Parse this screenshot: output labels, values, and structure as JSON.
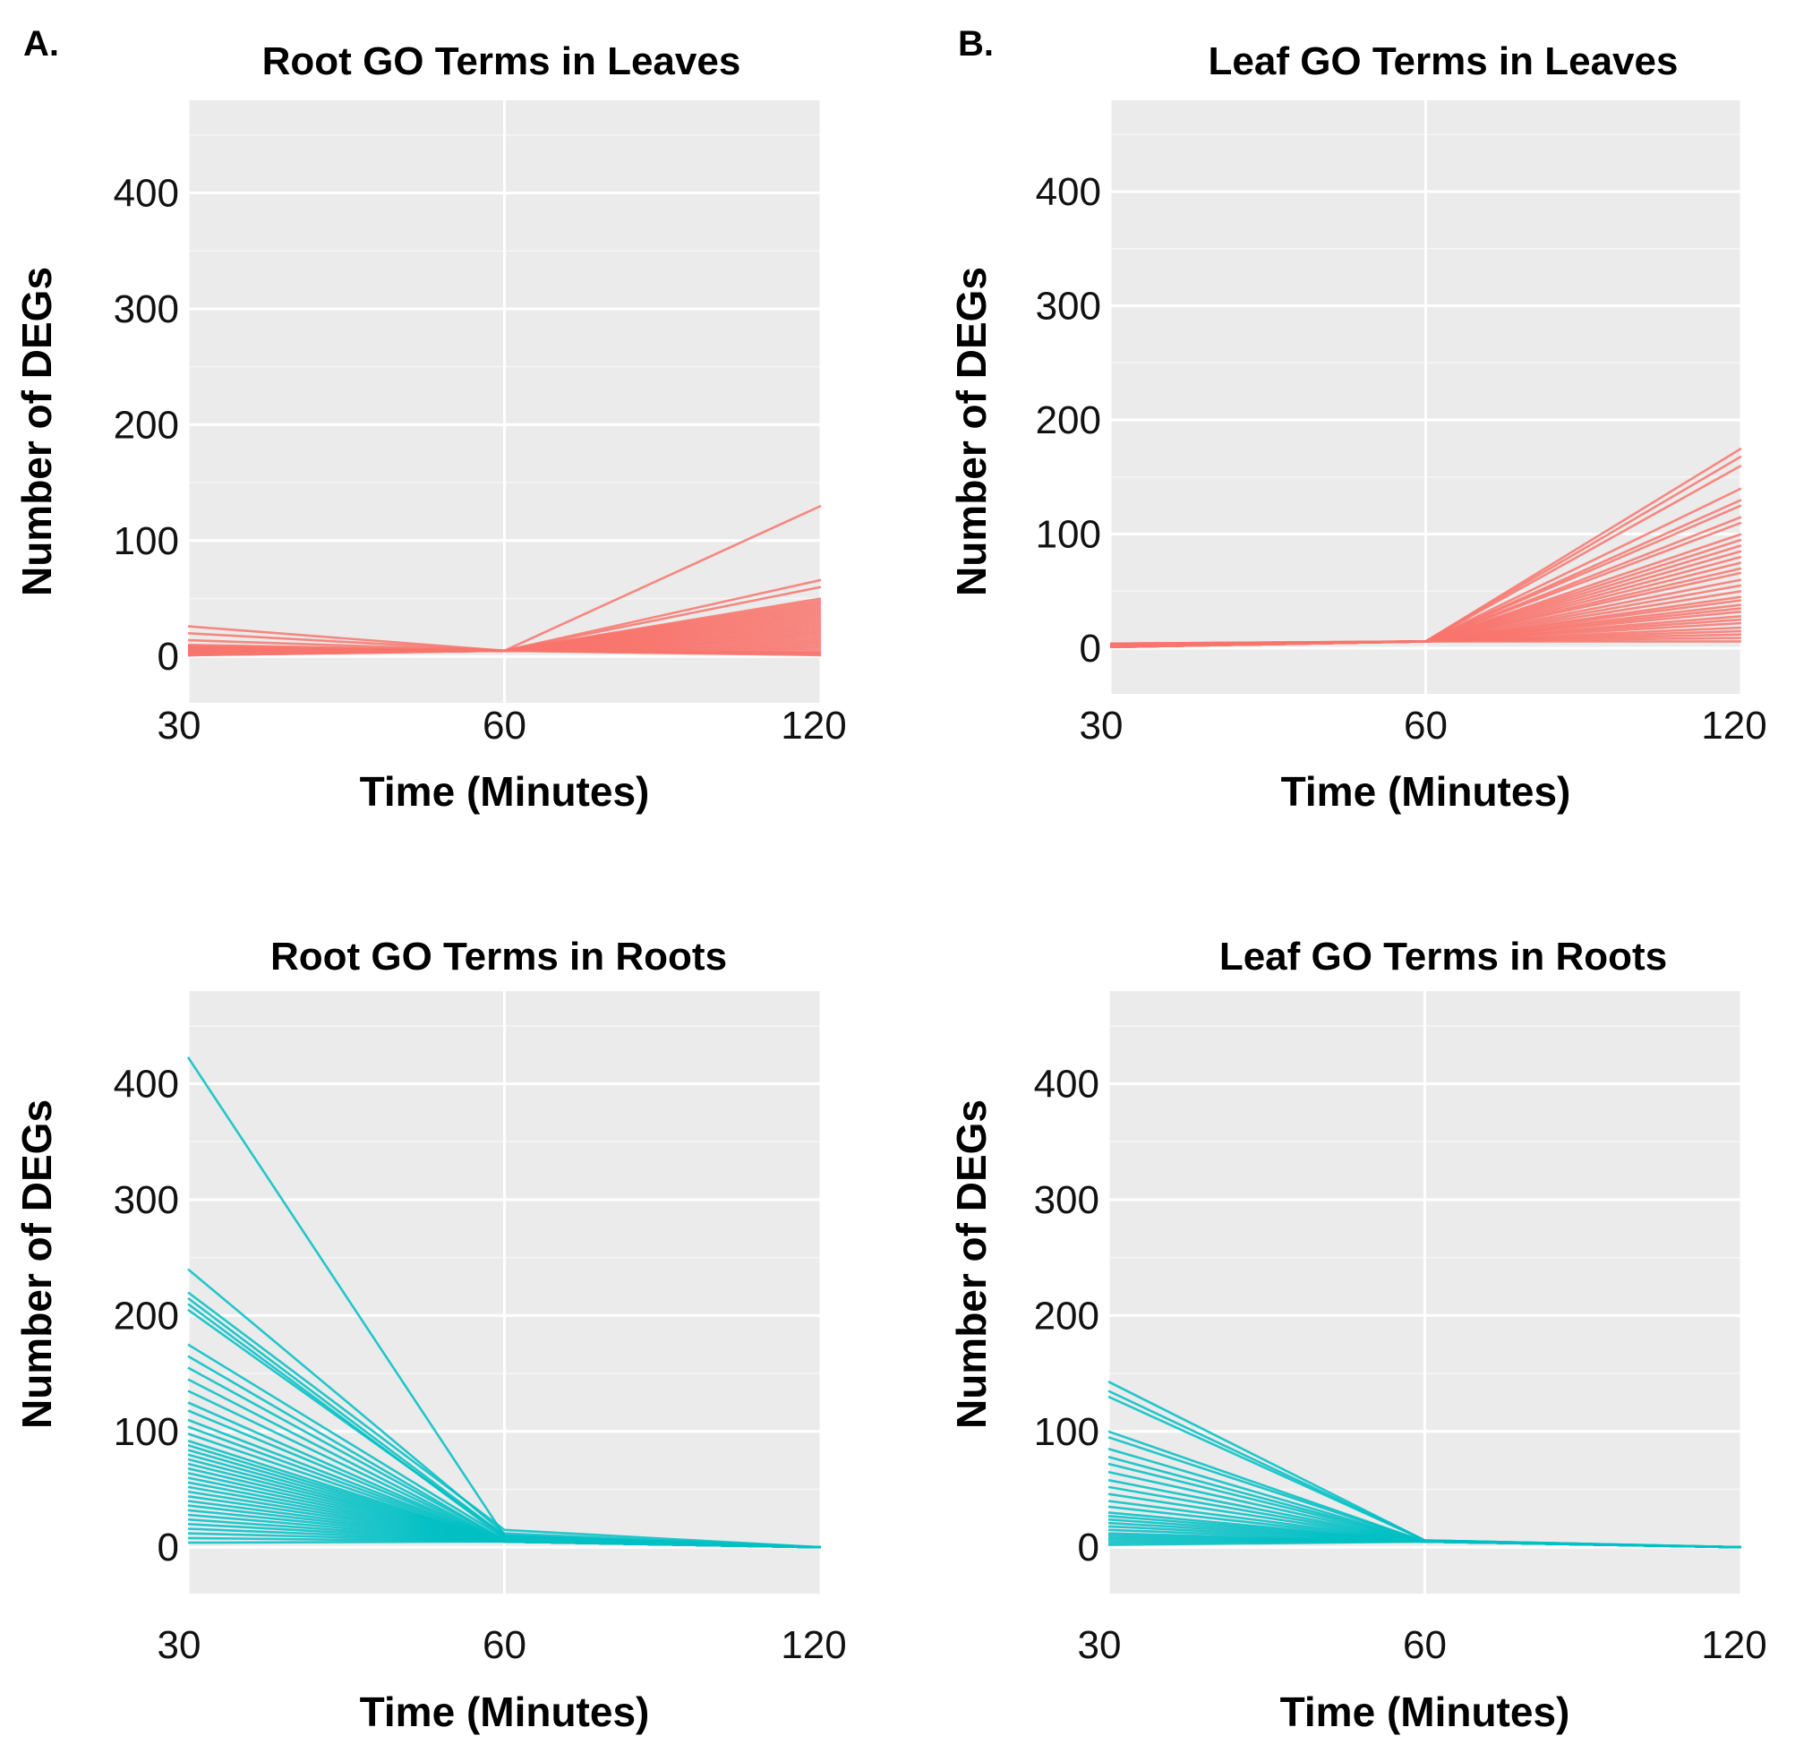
{
  "panel_letters": [
    "A.",
    "B."
  ],
  "chart_data": [
    {
      "type": "line",
      "title": "Root GO Terms in Leaves",
      "xlabel": "Time (Minutes)",
      "ylabel": "Number of DEGs",
      "x": [
        "30",
        "60",
        "120"
      ],
      "ylim": [
        -40,
        480
      ],
      "yticks": [
        "0",
        "100",
        "200",
        "300",
        "400"
      ],
      "color": "#f8766d",
      "series": [
        {
          "values": [
            26,
            5,
            130
          ]
        },
        {
          "values": [
            20,
            5,
            66
          ]
        },
        {
          "values": [
            14,
            5,
            60
          ]
        },
        {
          "values": [
            10,
            5,
            50
          ]
        },
        {
          "values": [
            9,
            5,
            48
          ]
        },
        {
          "values": [
            8,
            5,
            46
          ]
        },
        {
          "values": [
            8,
            5,
            44
          ]
        },
        {
          "values": [
            7,
            5,
            42
          ]
        },
        {
          "values": [
            7,
            5,
            40
          ]
        },
        {
          "values": [
            6,
            5,
            38
          ]
        },
        {
          "values": [
            6,
            5,
            36
          ]
        },
        {
          "values": [
            6,
            5,
            34
          ]
        },
        {
          "values": [
            5,
            5,
            32
          ]
        },
        {
          "values": [
            5,
            5,
            30
          ]
        },
        {
          "values": [
            5,
            5,
            28
          ]
        },
        {
          "values": [
            5,
            5,
            26
          ]
        },
        {
          "values": [
            4,
            5,
            24
          ]
        },
        {
          "values": [
            4,
            5,
            22
          ]
        },
        {
          "values": [
            4,
            5,
            20
          ]
        },
        {
          "values": [
            4,
            5,
            18
          ]
        },
        {
          "values": [
            4,
            5,
            16
          ]
        },
        {
          "values": [
            3,
            5,
            14
          ]
        },
        {
          "values": [
            3,
            5,
            12
          ]
        },
        {
          "values": [
            3,
            5,
            10
          ]
        },
        {
          "values": [
            3,
            5,
            8
          ]
        },
        {
          "values": [
            2,
            5,
            6
          ]
        },
        {
          "values": [
            2,
            5,
            4
          ]
        },
        {
          "values": [
            2,
            5,
            3
          ]
        },
        {
          "values": [
            1,
            5,
            2
          ]
        },
        {
          "values": [
            1,
            5,
            1
          ]
        }
      ]
    },
    {
      "type": "line",
      "title": "Leaf GO Terms in Leaves",
      "xlabel": "Time (Minutes)",
      "ylabel": "Number of DEGs",
      "x": [
        "30",
        "60",
        "120"
      ],
      "ylim": [
        -40,
        480
      ],
      "yticks": [
        "0",
        "100",
        "200",
        "300",
        "400"
      ],
      "color": "#f8766d",
      "series": [
        {
          "values": [
            4,
            6,
            175
          ]
        },
        {
          "values": [
            4,
            6,
            168
          ]
        },
        {
          "values": [
            4,
            6,
            160
          ]
        },
        {
          "values": [
            3,
            6,
            140
          ]
        },
        {
          "values": [
            3,
            6,
            130
          ]
        },
        {
          "values": [
            3,
            6,
            125
          ]
        },
        {
          "values": [
            3,
            6,
            115
          ]
        },
        {
          "values": [
            3,
            6,
            110
          ]
        },
        {
          "values": [
            3,
            6,
            100
          ]
        },
        {
          "values": [
            3,
            6,
            95
          ]
        },
        {
          "values": [
            3,
            6,
            90
          ]
        },
        {
          "values": [
            2,
            6,
            85
          ]
        },
        {
          "values": [
            2,
            6,
            80
          ]
        },
        {
          "values": [
            2,
            6,
            75
          ]
        },
        {
          "values": [
            2,
            6,
            70
          ]
        },
        {
          "values": [
            2,
            6,
            66
          ]
        },
        {
          "values": [
            2,
            6,
            60
          ]
        },
        {
          "values": [
            2,
            6,
            55
          ]
        },
        {
          "values": [
            2,
            6,
            50
          ]
        },
        {
          "values": [
            2,
            6,
            45
          ]
        },
        {
          "values": [
            2,
            6,
            42
          ]
        },
        {
          "values": [
            1,
            6,
            38
          ]
        },
        {
          "values": [
            1,
            6,
            35
          ]
        },
        {
          "values": [
            1,
            6,
            32
          ]
        },
        {
          "values": [
            1,
            6,
            28
          ]
        },
        {
          "values": [
            1,
            6,
            25
          ]
        },
        {
          "values": [
            1,
            6,
            22
          ]
        },
        {
          "values": [
            1,
            6,
            18
          ]
        },
        {
          "values": [
            1,
            6,
            15
          ]
        },
        {
          "values": [
            1,
            6,
            12
          ]
        },
        {
          "values": [
            1,
            6,
            9
          ]
        },
        {
          "values": [
            1,
            6,
            6
          ]
        }
      ]
    },
    {
      "type": "line",
      "title": "Root GO Terms in Roots",
      "xlabel": "Time (Minutes)",
      "ylabel": "Number of DEGs",
      "x": [
        "30",
        "60",
        "120"
      ],
      "ylim": [
        -40,
        480
      ],
      "yticks": [
        "0",
        "100",
        "200",
        "300",
        "400"
      ],
      "color": "#00bfc4",
      "series": [
        {
          "values": [
            423,
            10,
            0
          ]
        },
        {
          "values": [
            240,
            12,
            0
          ]
        },
        {
          "values": [
            220,
            15,
            0
          ]
        },
        {
          "values": [
            215,
            10,
            0
          ]
        },
        {
          "values": [
            210,
            8,
            0
          ]
        },
        {
          "values": [
            205,
            10,
            0
          ]
        },
        {
          "values": [
            175,
            8,
            0
          ]
        },
        {
          "values": [
            165,
            6,
            0
          ]
        },
        {
          "values": [
            155,
            6,
            0
          ]
        },
        {
          "values": [
            145,
            5,
            0
          ]
        },
        {
          "values": [
            135,
            5,
            0
          ]
        },
        {
          "values": [
            125,
            5,
            0
          ]
        },
        {
          "values": [
            118,
            5,
            0
          ]
        },
        {
          "values": [
            110,
            5,
            0
          ]
        },
        {
          "values": [
            104,
            5,
            0
          ]
        },
        {
          "values": [
            98,
            5,
            0
          ]
        },
        {
          "values": [
            92,
            5,
            0
          ]
        },
        {
          "values": [
            88,
            5,
            0
          ]
        },
        {
          "values": [
            84,
            5,
            0
          ]
        },
        {
          "values": [
            80,
            5,
            0
          ]
        },
        {
          "values": [
            76,
            5,
            0
          ]
        },
        {
          "values": [
            72,
            5,
            0
          ]
        },
        {
          "values": [
            68,
            5,
            0
          ]
        },
        {
          "values": [
            64,
            5,
            0
          ]
        },
        {
          "values": [
            60,
            5,
            0
          ]
        },
        {
          "values": [
            56,
            5,
            0
          ]
        },
        {
          "values": [
            52,
            5,
            0
          ]
        },
        {
          "values": [
            48,
            5,
            0
          ]
        },
        {
          "values": [
            44,
            5,
            0
          ]
        },
        {
          "values": [
            40,
            5,
            0
          ]
        },
        {
          "values": [
            36,
            5,
            0
          ]
        },
        {
          "values": [
            32,
            5,
            0
          ]
        },
        {
          "values": [
            28,
            5,
            0
          ]
        },
        {
          "values": [
            24,
            5,
            0
          ]
        },
        {
          "values": [
            20,
            5,
            0
          ]
        },
        {
          "values": [
            16,
            5,
            0
          ]
        },
        {
          "values": [
            12,
            5,
            0
          ]
        },
        {
          "values": [
            8,
            5,
            0
          ]
        },
        {
          "values": [
            4,
            5,
            0
          ]
        }
      ]
    },
    {
      "type": "line",
      "title": "Leaf GO Terms in Roots",
      "xlabel": "Time (Minutes)",
      "ylabel": "Number of DEGs",
      "x": [
        "30",
        "60",
        "120"
      ],
      "ylim": [
        -40,
        480
      ],
      "yticks": [
        "0",
        "100",
        "200",
        "300",
        "400"
      ],
      "color": "#00bfc4",
      "series": [
        {
          "values": [
            143,
            6,
            0
          ]
        },
        {
          "values": [
            135,
            6,
            0
          ]
        },
        {
          "values": [
            130,
            6,
            0
          ]
        },
        {
          "values": [
            100,
            5,
            0
          ]
        },
        {
          "values": [
            95,
            5,
            0
          ]
        },
        {
          "values": [
            85,
            5,
            0
          ]
        },
        {
          "values": [
            78,
            5,
            0
          ]
        },
        {
          "values": [
            72,
            5,
            0
          ]
        },
        {
          "values": [
            65,
            5,
            0
          ]
        },
        {
          "values": [
            58,
            5,
            0
          ]
        },
        {
          "values": [
            52,
            5,
            0
          ]
        },
        {
          "values": [
            46,
            5,
            0
          ]
        },
        {
          "values": [
            40,
            5,
            0
          ]
        },
        {
          "values": [
            35,
            5,
            0
          ]
        },
        {
          "values": [
            30,
            5,
            0
          ]
        },
        {
          "values": [
            27,
            5,
            0
          ]
        },
        {
          "values": [
            24,
            5,
            0
          ]
        },
        {
          "values": [
            21,
            5,
            0
          ]
        },
        {
          "values": [
            18,
            5,
            0
          ]
        },
        {
          "values": [
            15,
            5,
            0
          ]
        },
        {
          "values": [
            12,
            5,
            0
          ]
        },
        {
          "values": [
            10,
            5,
            0
          ]
        },
        {
          "values": [
            8,
            5,
            0
          ]
        },
        {
          "values": [
            6,
            5,
            0
          ]
        },
        {
          "values": [
            4,
            5,
            0
          ]
        },
        {
          "values": [
            2,
            5,
            0
          ]
        }
      ]
    }
  ]
}
